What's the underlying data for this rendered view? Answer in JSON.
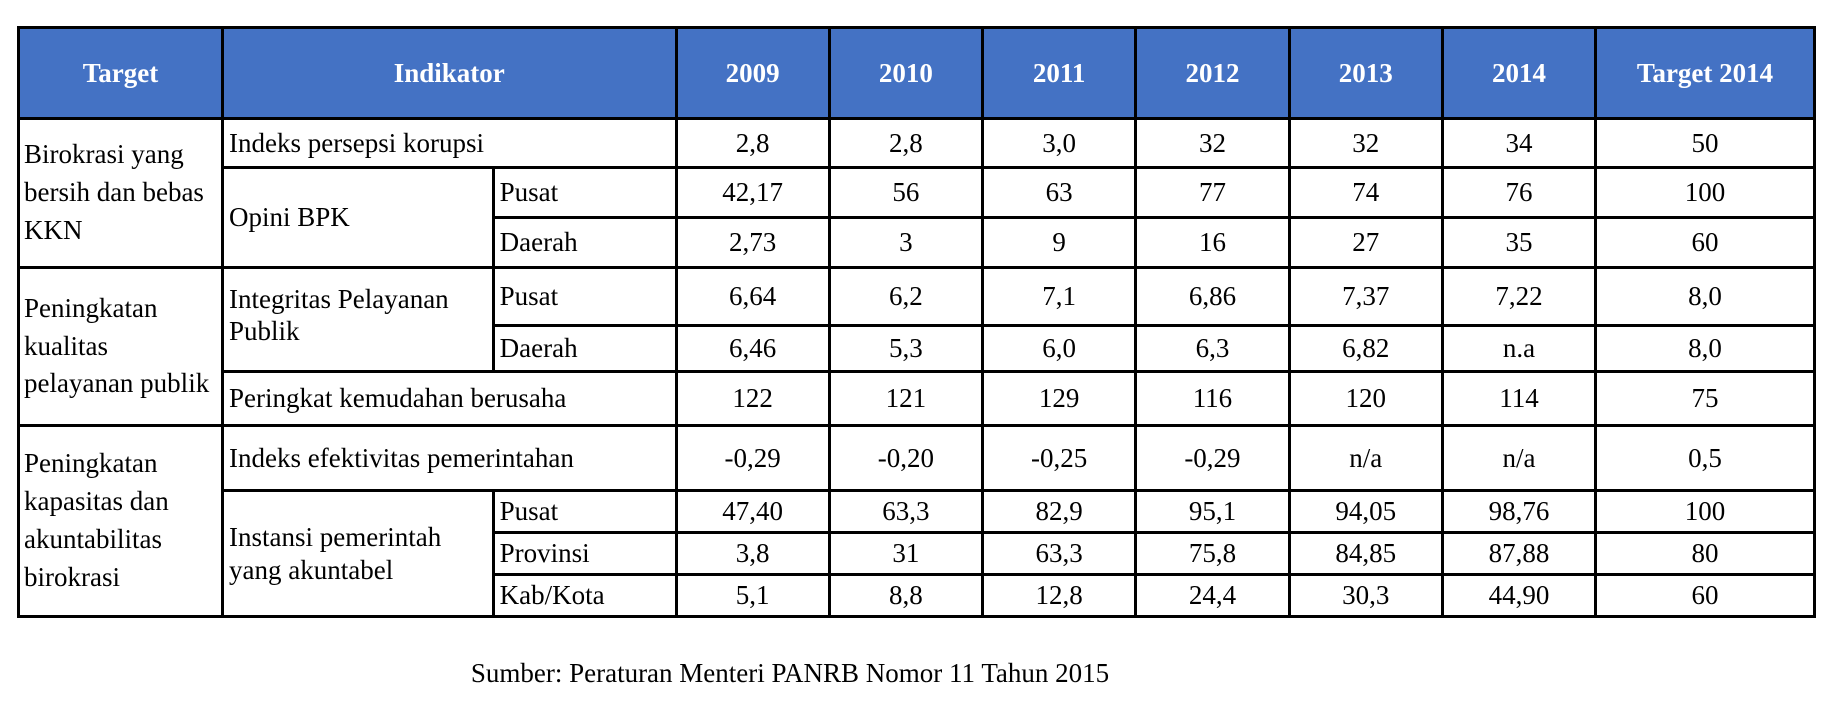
{
  "table": {
    "headers": [
      "Target",
      "Indikator",
      "2009",
      "2010",
      "2011",
      "2012",
      "2013",
      "2014",
      "Target 2014"
    ],
    "targets": [
      "Birokrasi yang bersih dan bebas KKN",
      "Peningkatan kualitas pelayanan publik",
      "Peningkatan kapasitas dan akuntabilitas birokrasi"
    ],
    "indicators": {
      "indeks_persepsi_korupsi": "Indeks persepsi korupsi",
      "opini_bpk": "Opini BPK",
      "integritas_pelayanan_publik": "Integritas Pelayanan Publik",
      "peringkat_kemudahan_berusaha": "Peringkat kemudahan berusaha",
      "indeks_efektivitas_pemerintahan": "Indeks efektivitas pemerintahan",
      "instansi_pemerintah_akuntabel": "Instansi pemerintah yang akuntabel"
    },
    "rows": [
      {
        "sub": "",
        "values": [
          "2,8",
          "2,8",
          "3,0",
          "32",
          "32",
          "34",
          "50"
        ]
      },
      {
        "sub": "Pusat",
        "values": [
          "42,17",
          "56",
          "63",
          "77",
          "74",
          "76",
          "100"
        ]
      },
      {
        "sub": "Daerah",
        "values": [
          "2,73",
          "3",
          "9",
          "16",
          "27",
          "35",
          "60"
        ]
      },
      {
        "sub": "Pusat",
        "values": [
          "6,64",
          "6,2",
          "7,1",
          "6,86",
          "7,37",
          "7,22",
          "8,0"
        ]
      },
      {
        "sub": "Daerah",
        "values": [
          "6,46",
          "5,3",
          "6,0",
          "6,3",
          "6,82",
          "n.a",
          "8,0"
        ]
      },
      {
        "sub": "",
        "values": [
          "122",
          "121",
          "129",
          "116",
          "120",
          "114",
          "75"
        ]
      },
      {
        "sub": "",
        "values": [
          "-0,29",
          "-0,20",
          "-0,25",
          "-0,29",
          "n/a",
          "n/a",
          "0,5"
        ]
      },
      {
        "sub": "Pusat",
        "values": [
          "47,40",
          "63,3",
          "82,9",
          "95,1",
          "94,05",
          "98,76",
          "100"
        ]
      },
      {
        "sub": "Provinsi",
        "values": [
          "3,8",
          "31",
          "63,3",
          "75,8",
          "84,85",
          "87,88",
          "80"
        ]
      },
      {
        "sub": "Kab/Kota",
        "values": [
          "5,1",
          "8,8",
          "12,8",
          "24,4",
          "30,3",
          "44,90",
          "60"
        ]
      }
    ]
  },
  "source": "Sumber: Peraturan Menteri PANRB Nomor 11 Tahun 2015"
}
